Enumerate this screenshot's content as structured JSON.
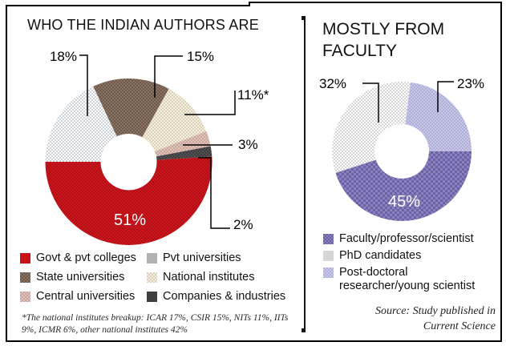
{
  "chart_data": [
    {
      "type": "pie",
      "donut": true,
      "title": "WHO THE INDIAN AUTHORS ARE",
      "units": "%",
      "start_angle_deg": -25.2,
      "legend_position": "bottom",
      "footnote": "*The national institutes breakup: ICAR 17%, CSIR 15%, NITs 11%, IITs 9%, ICMR 6%, other national institutes 42%",
      "segments": [
        {
          "label": "State universities",
          "value": 15,
          "callout": "15%",
          "color": "#8b7263",
          "accent": "#6b594c"
        },
        {
          "label": "National institutes",
          "value": 11,
          "callout": "11%*",
          "color": "#f3efe2",
          "accent": "#dbd2b6"
        },
        {
          "label": "Central universities",
          "value": 3,
          "callout": "3%",
          "color": "#dfc3ba",
          "accent": "#c9a79c"
        },
        {
          "label": "Companies & industries",
          "value": 2,
          "callout": "2%",
          "color": "#3d3d3f",
          "accent": "#525254"
        },
        {
          "label": "Govt & pvt colleges",
          "value": 51,
          "callout": "51%",
          "color": "#d2141c",
          "accent": "#aa1016"
        },
        {
          "label": "Pvt universities",
          "value": 18,
          "callout": "18%",
          "color": "#ccd3d9",
          "accent": "#ffffff"
        }
      ]
    },
    {
      "type": "pie",
      "donut": true,
      "title": "MOSTLY FROM FACULTY",
      "units": "%",
      "start_angle_deg": 7.2,
      "legend_position": "bottom",
      "segments": [
        {
          "label": "Post-doctoral researcher/young scientist",
          "value": 23,
          "callout": "23%",
          "color": "#c7c7e6",
          "accent": "#aeaed9"
        },
        {
          "label": "Faculty/professor/scientist",
          "value": 45,
          "callout": "45%",
          "color": "#8a82bd",
          "accent": "#6a61a6",
          "psize": 6
        },
        {
          "label": "PhD candidates",
          "value": 32,
          "callout": "32%",
          "color": "#d7d7d9",
          "accent": "#ffffff"
        }
      ]
    }
  ],
  "left_panel": {
    "legend": [
      {
        "label": "Govt & pvt colleges",
        "swatch": {
          "color": "#cc1017"
        }
      },
      {
        "label": "Pvt universities",
        "swatch": {
          "color": "#b2b2b2"
        }
      },
      {
        "label": "State universities",
        "swatch": {
          "color": "#8b7263",
          "accent": "#6b594c"
        }
      },
      {
        "label": "National institutes",
        "swatch": {
          "color": "#f3efe2",
          "accent": "#d9cfb4"
        }
      },
      {
        "label": "Central universities",
        "swatch": {
          "color": "#dfc3ba",
          "accent": "#c7a59a"
        }
      },
      {
        "label": "Companies & industries",
        "swatch": {
          "color": "#3f3f41"
        }
      }
    ]
  },
  "right_panel": {
    "legend": [
      {
        "label": "Faculty/professor/scientist",
        "label_line1": "Faculty/professor/scientist",
        "swatch": {
          "color": "#8a82bd",
          "accent": "#685fa4"
        }
      },
      {
        "label": "PhD candidates",
        "label_line1": "PhD candidates",
        "swatch": {
          "color": "#d6d6d8"
        }
      },
      {
        "label": "Post-doctoral researcher/young scientist",
        "label_line1": "Post-doctoral",
        "label_line2": "researcher/young scientist",
        "swatch": {
          "color": "#cacae8",
          "accent": "#b0b0dc"
        }
      }
    ],
    "source_line1": "Source: Study published in",
    "source_line2": "Current Science"
  }
}
